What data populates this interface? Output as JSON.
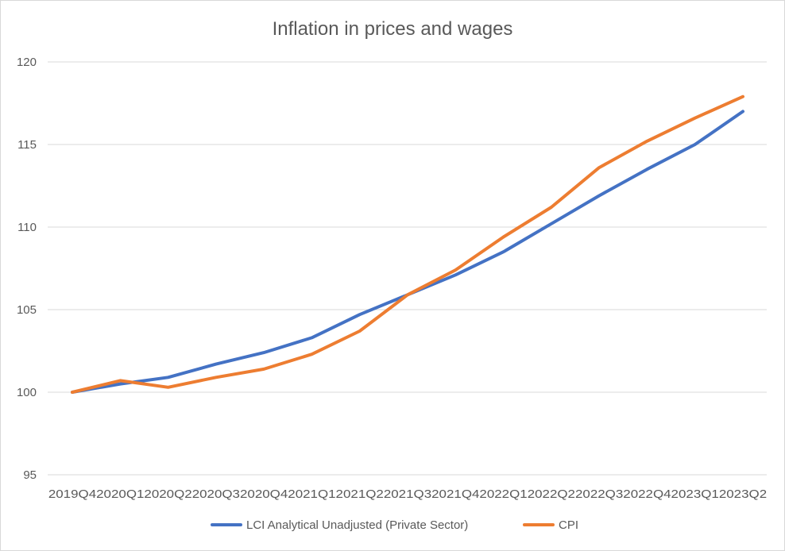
{
  "chart_data": {
    "type": "line",
    "title": "Inflation in prices and wages",
    "xlabel": "",
    "ylabel": "",
    "categories": [
      "2019Q4",
      "2020Q1",
      "2020Q2",
      "2020Q3",
      "2020Q4",
      "2021Q1",
      "2021Q2",
      "2021Q3",
      "2021Q4",
      "2022Q1",
      "2022Q2",
      "2022Q3",
      "2022Q4",
      "2023Q1",
      "2023Q2"
    ],
    "ylim": [
      95,
      120
    ],
    "yticks": [
      "95",
      "100",
      "105",
      "110",
      "115",
      "120"
    ],
    "grid": true,
    "legend_position": "bottom",
    "series": [
      {
        "name": "LCI Analytical Unadjusted (Private Sector)",
        "color": "#4472c4",
        "values": [
          100.0,
          100.5,
          100.9,
          101.7,
          102.4,
          103.3,
          104.7,
          105.9,
          107.1,
          108.5,
          110.2,
          111.9,
          113.5,
          115.0,
          117.0
        ]
      },
      {
        "name": "CPI",
        "color": "#ed7d31",
        "values": [
          100.0,
          100.7,
          100.3,
          100.9,
          101.4,
          102.3,
          103.7,
          105.9,
          107.4,
          109.4,
          111.2,
          113.6,
          115.2,
          116.6,
          117.9
        ]
      }
    ]
  }
}
